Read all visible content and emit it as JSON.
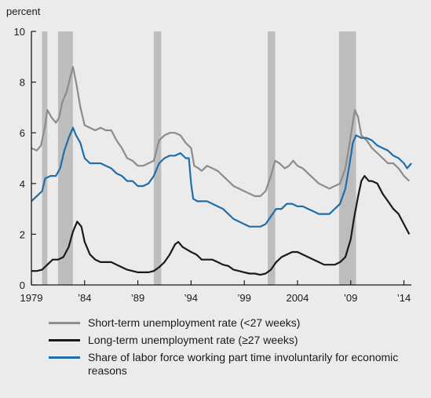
{
  "chart_data": {
    "type": "line",
    "ylabel": "percent",
    "ylim": [
      0,
      10
    ],
    "xlim": [
      1979.0,
      2014.7
    ],
    "yticks": [
      "0",
      "2",
      "4",
      "6",
      "8",
      "10"
    ],
    "xticks": [
      {
        "value": 1979,
        "label": "1979"
      },
      {
        "value": 1984,
        "label": "’84"
      },
      {
        "value": 1989,
        "label": "’89"
      },
      {
        "value": 1994,
        "label": "’94"
      },
      {
        "value": 1999,
        "label": "’99"
      },
      {
        "value": 2004,
        "label": "2004"
      },
      {
        "value": 2009,
        "label": "’09"
      },
      {
        "value": 2014,
        "label": "’14"
      }
    ],
    "recessions": [
      [
        1980.0,
        1980.5
      ],
      [
        1981.5,
        1982.9
      ],
      [
        1990.5,
        1991.2
      ],
      [
        2001.2,
        2001.9
      ],
      [
        2007.9,
        2009.5
      ]
    ],
    "series": [
      {
        "name": "Short-term unemployment rate (<27 weeks)",
        "color": "#8c8c8c",
        "points": [
          [
            1979.0,
            5.4
          ],
          [
            1979.5,
            5.3
          ],
          [
            1979.9,
            5.5
          ],
          [
            1980.3,
            6.3
          ],
          [
            1980.5,
            6.9
          ],
          [
            1980.9,
            6.6
          ],
          [
            1981.3,
            6.4
          ],
          [
            1981.6,
            6.6
          ],
          [
            1981.9,
            7.2
          ],
          [
            1982.3,
            7.6
          ],
          [
            1982.6,
            8.1
          ],
          [
            1982.9,
            8.6
          ],
          [
            1983.2,
            8.0
          ],
          [
            1983.6,
            7.0
          ],
          [
            1984.0,
            6.3
          ],
          [
            1984.5,
            6.2
          ],
          [
            1985.0,
            6.1
          ],
          [
            1985.5,
            6.2
          ],
          [
            1986.0,
            6.1
          ],
          [
            1986.5,
            6.1
          ],
          [
            1987.0,
            5.7
          ],
          [
            1987.5,
            5.4
          ],
          [
            1988.0,
            5.0
          ],
          [
            1988.5,
            4.9
          ],
          [
            1989.0,
            4.7
          ],
          [
            1989.5,
            4.7
          ],
          [
            1990.0,
            4.8
          ],
          [
            1990.5,
            4.9
          ],
          [
            1991.0,
            5.7
          ],
          [
            1991.5,
            5.9
          ],
          [
            1992.0,
            6.0
          ],
          [
            1992.5,
            6.0
          ],
          [
            1993.0,
            5.9
          ],
          [
            1993.5,
            5.6
          ],
          [
            1994.0,
            5.4
          ],
          [
            1994.3,
            4.7
          ],
          [
            1994.7,
            4.6
          ],
          [
            1995.0,
            4.5
          ],
          [
            1995.5,
            4.7
          ],
          [
            1996.0,
            4.6
          ],
          [
            1996.5,
            4.5
          ],
          [
            1997.0,
            4.3
          ],
          [
            1997.5,
            4.1
          ],
          [
            1998.0,
            3.9
          ],
          [
            1998.5,
            3.8
          ],
          [
            1999.0,
            3.7
          ],
          [
            1999.5,
            3.6
          ],
          [
            2000.0,
            3.5
          ],
          [
            2000.5,
            3.5
          ],
          [
            2001.0,
            3.7
          ],
          [
            2001.5,
            4.3
          ],
          [
            2001.9,
            4.9
          ],
          [
            2002.3,
            4.8
          ],
          [
            2002.8,
            4.6
          ],
          [
            2003.2,
            4.7
          ],
          [
            2003.6,
            4.9
          ],
          [
            2004.0,
            4.7
          ],
          [
            2004.5,
            4.6
          ],
          [
            2005.0,
            4.4
          ],
          [
            2005.5,
            4.2
          ],
          [
            2006.0,
            4.0
          ],
          [
            2006.5,
            3.9
          ],
          [
            2007.0,
            3.8
          ],
          [
            2007.5,
            3.9
          ],
          [
            2008.0,
            4.0
          ],
          [
            2008.5,
            4.6
          ],
          [
            2008.9,
            5.6
          ],
          [
            2009.2,
            6.4
          ],
          [
            2009.4,
            6.9
          ],
          [
            2009.7,
            6.6
          ],
          [
            2010.0,
            5.9
          ],
          [
            2010.5,
            5.7
          ],
          [
            2011.0,
            5.4
          ],
          [
            2011.5,
            5.2
          ],
          [
            2012.0,
            5.0
          ],
          [
            2012.5,
            4.8
          ],
          [
            2013.0,
            4.8
          ],
          [
            2013.5,
            4.6
          ],
          [
            2014.0,
            4.3
          ],
          [
            2014.5,
            4.1
          ]
        ]
      },
      {
        "name": "Long-term unemployment rate (≥27 weeks)",
        "color": "#1a1a1a",
        "points": [
          [
            1979.0,
            0.55
          ],
          [
            1979.5,
            0.55
          ],
          [
            1980.0,
            0.6
          ],
          [
            1980.5,
            0.8
          ],
          [
            1981.0,
            1.0
          ],
          [
            1981.5,
            1.0
          ],
          [
            1982.0,
            1.1
          ],
          [
            1982.5,
            1.5
          ],
          [
            1982.9,
            2.1
          ],
          [
            1983.3,
            2.5
          ],
          [
            1983.7,
            2.3
          ],
          [
            1984.0,
            1.7
          ],
          [
            1984.5,
            1.2
          ],
          [
            1985.0,
            1.0
          ],
          [
            1985.5,
            0.9
          ],
          [
            1986.0,
            0.9
          ],
          [
            1986.5,
            0.9
          ],
          [
            1987.0,
            0.8
          ],
          [
            1987.5,
            0.7
          ],
          [
            1988.0,
            0.6
          ],
          [
            1988.5,
            0.55
          ],
          [
            1989.0,
            0.5
          ],
          [
            1989.5,
            0.5
          ],
          [
            1990.0,
            0.5
          ],
          [
            1990.5,
            0.55
          ],
          [
            1991.0,
            0.7
          ],
          [
            1991.5,
            0.9
          ],
          [
            1992.0,
            1.2
          ],
          [
            1992.5,
            1.6
          ],
          [
            1992.8,
            1.7
          ],
          [
            1993.2,
            1.5
          ],
          [
            1993.6,
            1.4
          ],
          [
            1994.0,
            1.3
          ],
          [
            1994.5,
            1.2
          ],
          [
            1995.0,
            1.0
          ],
          [
            1995.5,
            1.0
          ],
          [
            1996.0,
            1.0
          ],
          [
            1996.5,
            0.9
          ],
          [
            1997.0,
            0.8
          ],
          [
            1997.5,
            0.75
          ],
          [
            1998.0,
            0.6
          ],
          [
            1998.5,
            0.55
          ],
          [
            1999.0,
            0.5
          ],
          [
            1999.5,
            0.45
          ],
          [
            2000.0,
            0.45
          ],
          [
            2000.5,
            0.4
          ],
          [
            2001.0,
            0.45
          ],
          [
            2001.5,
            0.6
          ],
          [
            2002.0,
            0.9
          ],
          [
            2002.5,
            1.1
          ],
          [
            2003.0,
            1.2
          ],
          [
            2003.5,
            1.3
          ],
          [
            2004.0,
            1.3
          ],
          [
            2004.5,
            1.2
          ],
          [
            2005.0,
            1.1
          ],
          [
            2005.5,
            1.0
          ],
          [
            2006.0,
            0.9
          ],
          [
            2006.5,
            0.8
          ],
          [
            2007.0,
            0.8
          ],
          [
            2007.5,
            0.8
          ],
          [
            2008.0,
            0.9
          ],
          [
            2008.5,
            1.1
          ],
          [
            2009.0,
            1.8
          ],
          [
            2009.3,
            2.6
          ],
          [
            2009.7,
            3.5
          ],
          [
            2010.0,
            4.1
          ],
          [
            2010.3,
            4.3
          ],
          [
            2010.7,
            4.1
          ],
          [
            2011.0,
            4.1
          ],
          [
            2011.5,
            4.0
          ],
          [
            2012.0,
            3.6
          ],
          [
            2012.5,
            3.3
          ],
          [
            2013.0,
            3.0
          ],
          [
            2013.5,
            2.8
          ],
          [
            2014.0,
            2.4
          ],
          [
            2014.5,
            2.0
          ]
        ]
      },
      {
        "name": "Share of labor force working part time involuntarily for economic reasons",
        "color": "#1f6eaa",
        "points": [
          [
            1979.0,
            3.3
          ],
          [
            1979.5,
            3.5
          ],
          [
            1980.0,
            3.7
          ],
          [
            1980.3,
            4.2
          ],
          [
            1980.8,
            4.3
          ],
          [
            1981.3,
            4.3
          ],
          [
            1981.7,
            4.6
          ],
          [
            1982.1,
            5.3
          ],
          [
            1982.5,
            5.8
          ],
          [
            1982.9,
            6.2
          ],
          [
            1983.2,
            5.9
          ],
          [
            1983.6,
            5.6
          ],
          [
            1984.0,
            5.0
          ],
          [
            1984.5,
            4.8
          ],
          [
            1985.0,
            4.8
          ],
          [
            1985.5,
            4.8
          ],
          [
            1986.0,
            4.7
          ],
          [
            1986.5,
            4.6
          ],
          [
            1987.0,
            4.4
          ],
          [
            1987.5,
            4.3
          ],
          [
            1988.0,
            4.1
          ],
          [
            1988.5,
            4.1
          ],
          [
            1989.0,
            3.9
          ],
          [
            1989.5,
            3.9
          ],
          [
            1990.0,
            4.0
          ],
          [
            1990.5,
            4.3
          ],
          [
            1991.0,
            4.8
          ],
          [
            1991.5,
            5.0
          ],
          [
            1992.0,
            5.1
          ],
          [
            1992.5,
            5.1
          ],
          [
            1993.0,
            5.2
          ],
          [
            1993.5,
            5.0
          ],
          [
            1993.8,
            5.0
          ],
          [
            1994.0,
            4.0
          ],
          [
            1994.2,
            3.4
          ],
          [
            1994.6,
            3.3
          ],
          [
            1995.0,
            3.3
          ],
          [
            1995.5,
            3.3
          ],
          [
            1996.0,
            3.2
          ],
          [
            1996.5,
            3.1
          ],
          [
            1997.0,
            3.0
          ],
          [
            1997.5,
            2.8
          ],
          [
            1998.0,
            2.6
          ],
          [
            1998.5,
            2.5
          ],
          [
            1999.0,
            2.4
          ],
          [
            1999.5,
            2.3
          ],
          [
            2000.0,
            2.3
          ],
          [
            2000.5,
            2.3
          ],
          [
            2001.0,
            2.4
          ],
          [
            2001.5,
            2.7
          ],
          [
            2002.0,
            3.0
          ],
          [
            2002.5,
            3.0
          ],
          [
            2003.0,
            3.2
          ],
          [
            2003.5,
            3.2
          ],
          [
            2004.0,
            3.1
          ],
          [
            2004.5,
            3.1
          ],
          [
            2005.0,
            3.0
          ],
          [
            2005.5,
            2.9
          ],
          [
            2006.0,
            2.8
          ],
          [
            2006.5,
            2.8
          ],
          [
            2007.0,
            2.8
          ],
          [
            2007.5,
            3.0
          ],
          [
            2008.0,
            3.2
          ],
          [
            2008.5,
            3.8
          ],
          [
            2008.9,
            4.8
          ],
          [
            2009.2,
            5.6
          ],
          [
            2009.5,
            5.9
          ],
          [
            2010.0,
            5.8
          ],
          [
            2010.5,
            5.8
          ],
          [
            2011.0,
            5.7
          ],
          [
            2011.5,
            5.5
          ],
          [
            2012.0,
            5.4
          ],
          [
            2012.5,
            5.3
          ],
          [
            2013.0,
            5.1
          ],
          [
            2013.5,
            5.0
          ],
          [
            2014.0,
            4.8
          ],
          [
            2014.3,
            4.6
          ],
          [
            2014.7,
            4.8
          ]
        ]
      }
    ],
    "legend": [
      {
        "label": "Short-term unemployment rate (<27 weeks)",
        "color": "#8c8c8c"
      },
      {
        "label": "Long-term unemployment rate (≥27 weeks)",
        "color": "#1a1a1a"
      },
      {
        "label": "Share of labor force working part time involuntarily for economic reasons",
        "color": "#1f6eaa"
      }
    ]
  }
}
